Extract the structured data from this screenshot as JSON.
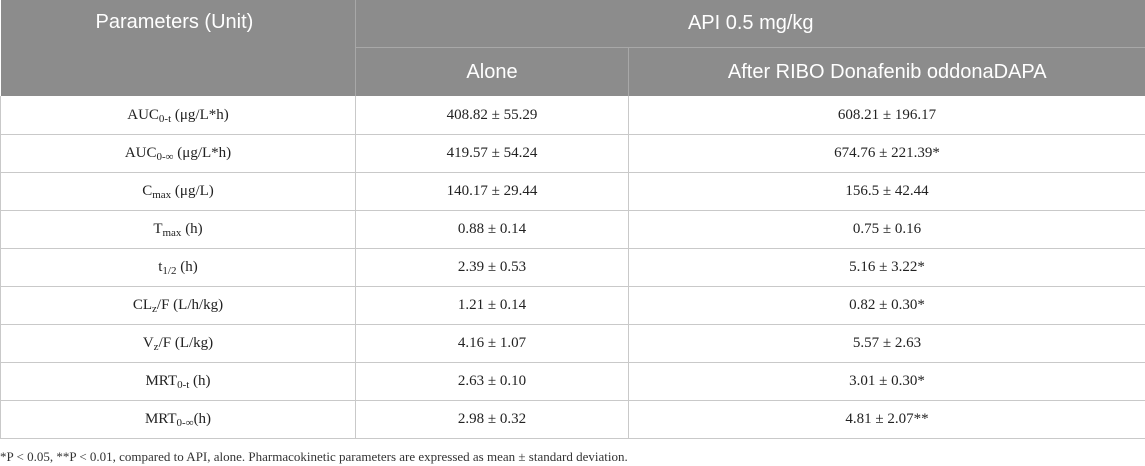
{
  "header": {
    "param_col": "Parameters (Unit)",
    "group": "API 0.5 mg/kg",
    "sub_cols": [
      "Alone",
      "After RIBO Donafenib oddonaDAPA"
    ]
  },
  "rows": [
    {
      "name": "AUC",
      "sub": "0-t",
      "unit": " (μg/L*h)",
      "alone": "408.82 ± 55.29",
      "after": "608.21 ± 196.17"
    },
    {
      "name": "AUC",
      "sub": "0-∞",
      "unit": " (μg/L*h)",
      "alone": "419.57 ± 54.24",
      "after": "674.76 ± 221.39*"
    },
    {
      "name": "C",
      "sub": "max",
      "unit": " (μg/L)",
      "alone": "140.17 ± 29.44",
      "after": "156.5 ± 42.44"
    },
    {
      "name": "T",
      "sub": "max",
      "unit": " (h)",
      "alone": "0.88 ± 0.14",
      "after": "0.75 ± 0.16"
    },
    {
      "name": "t",
      "sub": "1/2",
      "unit": " (h)",
      "alone": "2.39 ± 0.53",
      "after": "5.16 ± 3.22*"
    },
    {
      "name": "CL",
      "sub": "z",
      "unit": "/F (L/h/kg)",
      "alone": "1.21 ± 0.14",
      "after": "0.82 ± 0.30*"
    },
    {
      "name": "V",
      "sub": "z",
      "unit": "/F (L/kg)",
      "alone": "4.16 ± 1.07",
      "after": "5.57 ± 2.63"
    },
    {
      "name": "MRT",
      "sub": "0-t",
      "unit": " (h)",
      "alone": "2.63 ± 0.10",
      "after": "3.01 ± 0.30*"
    },
    {
      "name": "MRT",
      "sub": "0-∞",
      "unit": "(h)",
      "alone": "2.98 ± 0.32",
      "after": "4.81 ± 2.07**"
    }
  ],
  "footnote": "*P < 0.05, **P < 0.01, compared to API, alone. Pharmacokinetic parameters are expressed as mean ± standard deviation.",
  "colors": {
    "header_bg": "#8c8c8c",
    "header_text": "#ffffff",
    "grid": "#c9c9c9"
  }
}
